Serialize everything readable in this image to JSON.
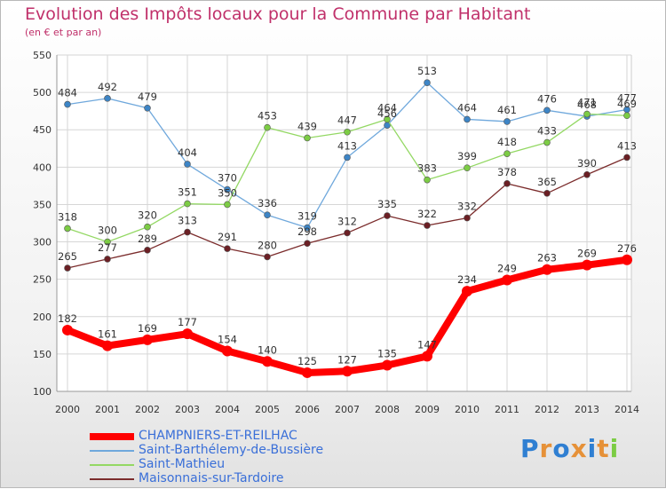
{
  "title": "Evolution des Impôts locaux pour la Commune par Habitant",
  "subtitle": "(en € et par an)",
  "brand": "Proxiti",
  "chart_data": {
    "type": "line",
    "title": "Evolution des Impôts locaux pour la Commune par Habitant",
    "subtitle": "(en € et par an)",
    "x": [
      "2000",
      "2001",
      "2002",
      "2003",
      "2004",
      "2005",
      "2006",
      "2007",
      "2008",
      "2009",
      "2010",
      "2011",
      "2012",
      "2013",
      "2014"
    ],
    "ylim": [
      100,
      550
    ],
    "yticks": [
      "100",
      "150",
      "200",
      "250",
      "300",
      "350",
      "400",
      "450",
      "500",
      "550"
    ],
    "grid": true,
    "legend_position": "bottom-left",
    "series": [
      {
        "name": "CHAMPNIERS-ET-REILHAC",
        "color": "#ff0000",
        "marker": "#ff0000",
        "values": [
          182,
          161,
          169,
          177,
          154,
          140,
          125,
          127,
          135,
          147,
          234,
          249,
          263,
          269,
          276
        ],
        "labels": [
          "182",
          "161",
          "169",
          "177",
          "154",
          "140",
          "125",
          "127",
          "135",
          "147",
          "234",
          "249",
          "263",
          "269",
          "276"
        ]
      },
      {
        "name": "Saint-Barthélemy-de-Bussière",
        "color": "#6fa8dc",
        "marker": "#3d85c6",
        "values": [
          484,
          492,
          479,
          404,
          370,
          336,
          319,
          413,
          456,
          513,
          464,
          461,
          476,
          468,
          477
        ],
        "labels": [
          "484",
          "492",
          "479",
          "404",
          "370",
          "336",
          "319",
          "413",
          "456",
          "513",
          "464",
          "461",
          "476",
          "468",
          "477"
        ]
      },
      {
        "name": "Saint-Mathieu",
        "color": "#93d863",
        "marker": "#7ccc44",
        "values": [
          318,
          300,
          320,
          351,
          350,
          453,
          439,
          447,
          464,
          383,
          399,
          418,
          433,
          471,
          469
        ],
        "labels": [
          "318",
          "300",
          "320",
          "351",
          "350",
          "453",
          "439",
          "447",
          "464",
          "383",
          "399",
          "418",
          "433",
          "471",
          "469"
        ]
      },
      {
        "name": "Maisonnais-sur-Tardoire",
        "color": "#7b2c2c",
        "marker": "#6b1f24",
        "values": [
          265,
          277,
          289,
          313,
          291,
          280,
          298,
          312,
          335,
          322,
          332,
          378,
          365,
          390,
          413
        ],
        "labels": [
          "265",
          "277",
          "289",
          "313",
          "291",
          "280",
          "298",
          "312",
          "335",
          "322",
          "332",
          "378",
          "365",
          "390",
          "413"
        ]
      }
    ]
  }
}
